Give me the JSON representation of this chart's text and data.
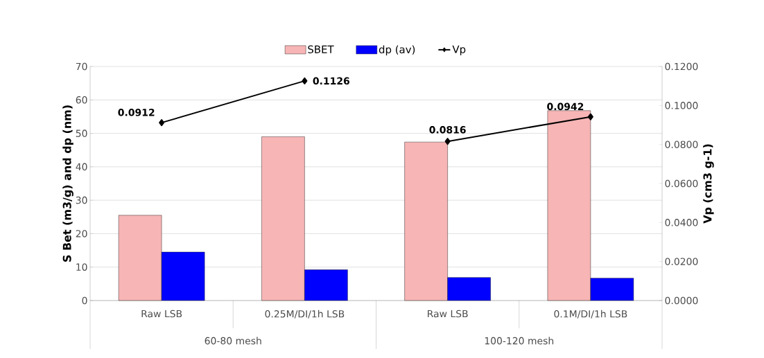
{
  "chart_data": {
    "type": "bar",
    "xlabel": null,
    "ylabel": "S Bet (m3/g) and dp (nm)",
    "y2label": "Vp (cm3 g-1)",
    "categories": [
      "Raw LSB",
      "0.25M/DI/1h  LSB",
      "Raw LSB",
      "0.1M/DI/1h LSB"
    ],
    "series": [
      {
        "name": "SBET",
        "color": "#f7b5b5",
        "values": [
          25.5,
          49,
          47.4,
          56.8
        ]
      },
      {
        "name": "dp (av)",
        "color": "#0000ff",
        "values": [
          14.5,
          9.2,
          6.9,
          6.7
        ]
      },
      {
        "name": "Vp",
        "type": "line",
        "axis": "y2",
        "color": "#000000",
        "marker": "diamond",
        "values": [
          0.0912,
          0.1126,
          null,
          null
        ],
        "value_labels": [
          "0.0912",
          "0.1126",
          null,
          null
        ]
      },
      {
        "type": "line",
        "axis": "y2",
        "color": "#000000",
        "marker": "diamond",
        "values": [
          null,
          null,
          0.0816,
          0.0942
        ],
        "value_labels": [
          null,
          null,
          "0.0816",
          "0.0942"
        ]
      }
    ],
    "ylim": [
      0,
      70
    ],
    "yticks": [
      0,
      10,
      20,
      30,
      40,
      50,
      60,
      70
    ],
    "y2lim": [
      0,
      0.12
    ],
    "y2ticks": [
      {
        "value": 0,
        "label": "0.0000"
      },
      {
        "value": 0.02,
        "label": "0.0200"
      },
      {
        "value": 0.04,
        "label": "0.0400"
      },
      {
        "value": 0.06,
        "label": "0.0600"
      },
      {
        "value": 0.08,
        "label": "0.0800"
      },
      {
        "value": 0.1,
        "label": "0.1000"
      },
      {
        "value": 0.12,
        "label": "0.1200"
      }
    ],
    "grid": "y",
    "legend": "top",
    "annotations": [
      "60-80 mesh",
      "100-120 mesh"
    ]
  }
}
